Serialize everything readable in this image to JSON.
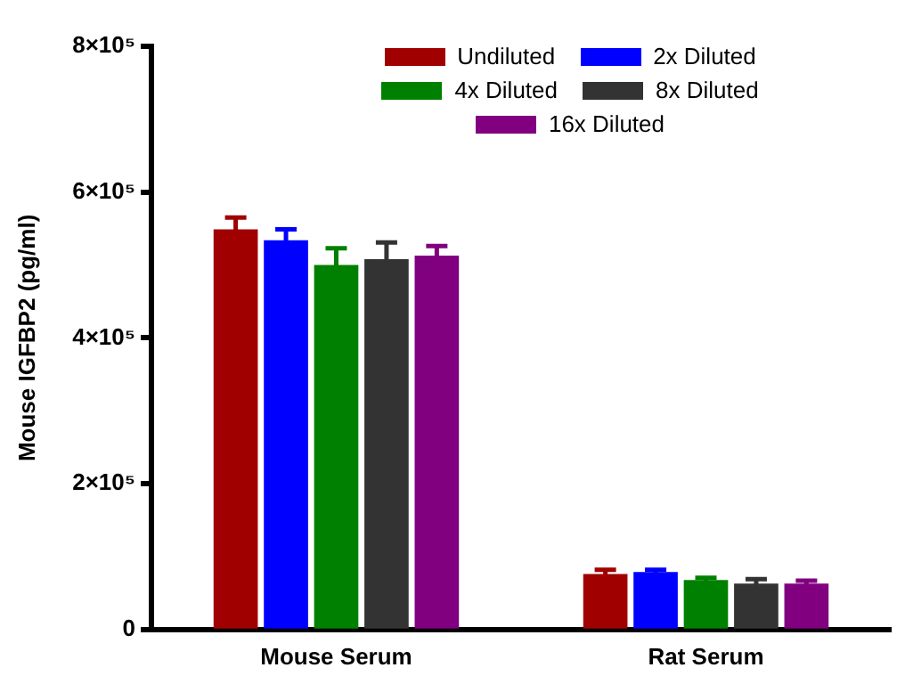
{
  "chart_data": {
    "type": "bar",
    "ylabel": "Mouse IGFBP2 (pg/ml)",
    "categories": [
      "Mouse Serum",
      "Rat Serum"
    ],
    "series": [
      {
        "name": "Undiluted",
        "color": "#a00000",
        "values": [
          549000,
          76000
        ],
        "errors": [
          16000,
          6000
        ]
      },
      {
        "name": "2x Diluted",
        "color": "#0000ff",
        "values": [
          534000,
          79000
        ],
        "errors": [
          15000,
          3000
        ]
      },
      {
        "name": "4x Diluted",
        "color": "#008000",
        "values": [
          500000,
          68000
        ],
        "errors": [
          23000,
          3000
        ]
      },
      {
        "name": "8x Diluted",
        "color": "#333333",
        "values": [
          508000,
          63000
        ],
        "errors": [
          23000,
          6000
        ]
      },
      {
        "name": "16x Diluted",
        "color": "#800080",
        "values": [
          513000,
          63000
        ],
        "errors": [
          13000,
          4000
        ]
      }
    ],
    "ylim": [
      0,
      800000
    ],
    "yticks": [
      {
        "value": 0,
        "label": "0"
      },
      {
        "value": 200000,
        "label": "2×10⁵"
      },
      {
        "value": 400000,
        "label": "4×10⁵"
      },
      {
        "value": 600000,
        "label": "6×10⁵"
      },
      {
        "value": 800000,
        "label": "8×10⁵"
      }
    ],
    "grid": false,
    "legend": "top right"
  }
}
